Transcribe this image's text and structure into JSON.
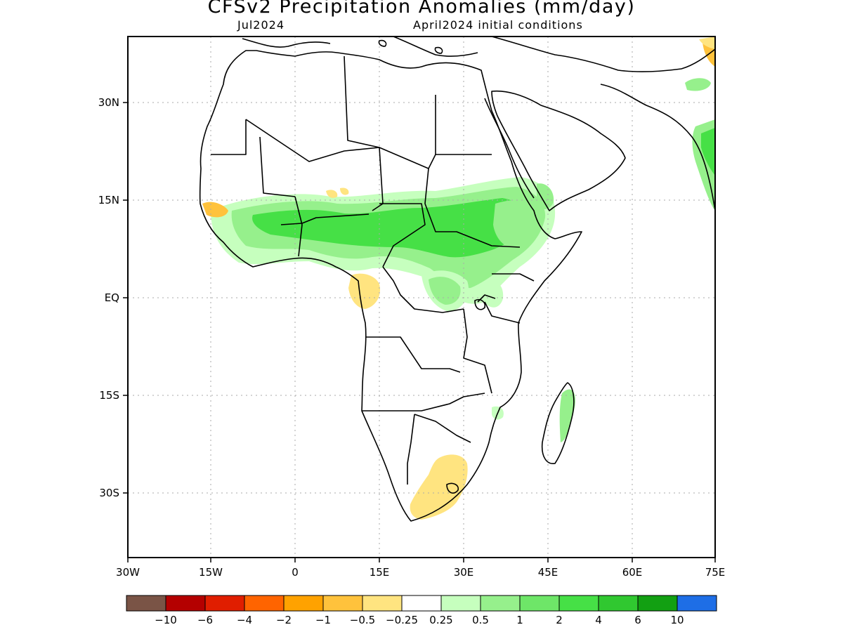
{
  "title": "CFSv2 Precipitation Anomalies (mm/day)",
  "subtitle_left": "Jul2024",
  "subtitle_right": "April2024 initial conditions",
  "axes": {
    "lat_ticks": [
      "30N",
      "15N",
      "EQ",
      "15S",
      "30S"
    ],
    "lon_ticks": [
      "30W",
      "15W",
      "0",
      "15E",
      "30E",
      "45E",
      "60E",
      "75E"
    ]
  },
  "colorbar": {
    "colors": [
      "#7a5446",
      "#b40000",
      "#e01e00",
      "#ff6400",
      "#ffa200",
      "#ffc23c",
      "#ffe480",
      "#ffffff",
      "#c6ffbe",
      "#96f08c",
      "#6ee668",
      "#46e046",
      "#30c830",
      "#12a012",
      "#1e6ee6"
    ],
    "labels": [
      "−10",
      "−6",
      "−4",
      "−2",
      "−1",
      "−0.5",
      "−0.25",
      "0.25",
      "0.5",
      "1",
      "2",
      "4",
      "6",
      "10"
    ]
  },
  "colors": {
    "dry_anomaly": "#ffe480",
    "dry_strong": "#ffc23c",
    "wet_light": "#c6ffbe",
    "wet_moderate": "#96f08c",
    "wet_strong": "#46e046"
  }
}
